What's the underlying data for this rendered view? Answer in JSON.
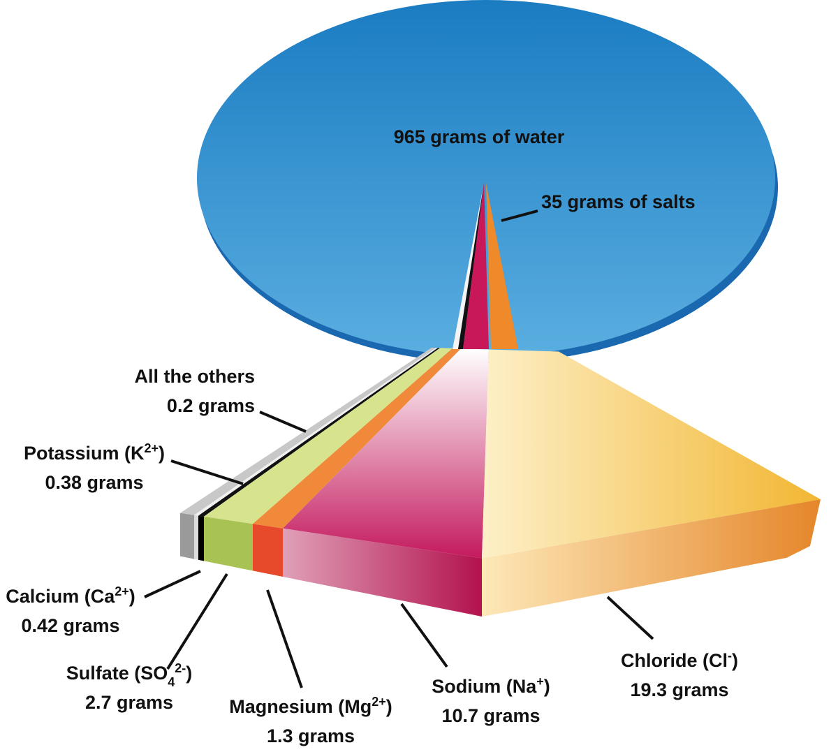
{
  "water": {
    "label": "965 grams of water"
  },
  "salts": {
    "label": "35 grams of salts"
  },
  "components": [
    {
      "name": [
        {
          "t": "All the others"
        }
      ],
      "amount": "0.2 grams"
    },
    {
      "name": [
        {
          "t": "Potassium (K"
        },
        {
          "sup": "2+"
        },
        {
          "t": ")"
        }
      ],
      "amount": "0.38 grams"
    },
    {
      "name": [
        {
          "t": "Calcium (Ca"
        },
        {
          "sup": "2+"
        },
        {
          "t": ")"
        }
      ],
      "amount": "0.42 grams"
    },
    {
      "name": [
        {
          "t": "Sulfate (SO"
        },
        {
          "sub": "4"
        },
        {
          "sup": "2-"
        },
        {
          "t": ")"
        }
      ],
      "amount": "2.7 grams"
    },
    {
      "name": [
        {
          "t": "Magnesium  (Mg"
        },
        {
          "sup": "2+"
        },
        {
          "t": ")"
        }
      ],
      "amount": "1.3 grams"
    },
    {
      "name": [
        {
          "t": "Sodium  (Na"
        },
        {
          "sup": "+"
        },
        {
          "t": ")"
        }
      ],
      "amount": "10.7 grams"
    },
    {
      "name": [
        {
          "t": "Chloride (Cl"
        },
        {
          "sup": "-"
        },
        {
          "t": ")"
        }
      ],
      "amount": "19.3 grams"
    }
  ]
}
